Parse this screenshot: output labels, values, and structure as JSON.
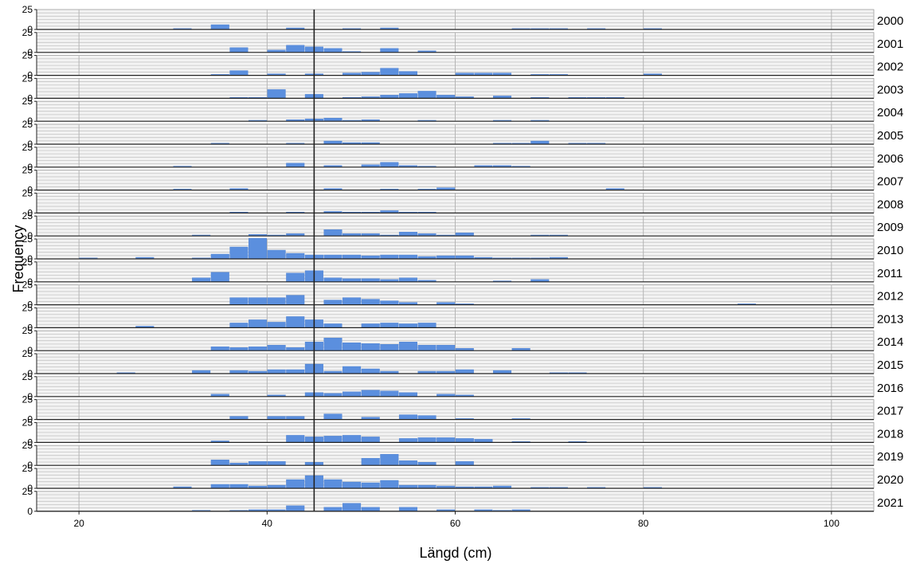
{
  "chart_data": {
    "type": "bar",
    "title": "",
    "xlabel": "Längd (cm)",
    "ylabel": "Frequency",
    "xlim": [
      15.5,
      104.5
    ],
    "ylim": [
      0,
      25
    ],
    "x_ticks": [
      20,
      40,
      60,
      80,
      100
    ],
    "y_ticks": [
      0,
      25
    ],
    "reference_line_x": 45,
    "bin_width": 2,
    "bar_color": "#5b8fde",
    "panels": [
      {
        "label": "2000",
        "bins": [
          [
            30,
            1
          ],
          [
            34,
            6
          ],
          [
            42,
            2
          ],
          [
            48,
            1
          ],
          [
            52,
            2
          ],
          [
            66,
            1
          ],
          [
            68,
            1
          ],
          [
            70,
            1
          ],
          [
            74,
            1
          ],
          [
            80,
            1
          ]
        ]
      },
      {
        "label": "2001",
        "bins": [
          [
            36,
            6
          ],
          [
            40,
            3
          ],
          [
            42,
            9
          ],
          [
            44,
            7
          ],
          [
            46,
            5
          ],
          [
            48,
            1
          ],
          [
            52,
            5
          ],
          [
            56,
            2
          ]
        ]
      },
      {
        "label": "2002",
        "bins": [
          [
            34,
            1
          ],
          [
            36,
            6
          ],
          [
            40,
            2
          ],
          [
            44,
            2
          ],
          [
            48,
            3
          ],
          [
            50,
            4
          ],
          [
            52,
            9
          ],
          [
            54,
            5
          ],
          [
            60,
            3
          ],
          [
            62,
            3
          ],
          [
            64,
            3
          ],
          [
            68,
            1
          ],
          [
            70,
            1
          ],
          [
            80,
            2
          ]
        ]
      },
      {
        "label": "2003",
        "bins": [
          [
            36,
            1
          ],
          [
            38,
            1
          ],
          [
            40,
            11
          ],
          [
            44,
            5
          ],
          [
            48,
            1
          ],
          [
            50,
            2
          ],
          [
            52,
            4
          ],
          [
            54,
            6
          ],
          [
            56,
            9
          ],
          [
            58,
            4
          ],
          [
            60,
            2
          ],
          [
            64,
            3
          ],
          [
            68,
            1
          ],
          [
            72,
            1
          ],
          [
            74,
            1
          ],
          [
            76,
            1
          ]
        ]
      },
      {
        "label": "2004",
        "bins": [
          [
            38,
            1
          ],
          [
            42,
            2
          ],
          [
            44,
            3
          ],
          [
            46,
            4
          ],
          [
            48,
            1
          ],
          [
            50,
            2
          ],
          [
            56,
            1
          ],
          [
            64,
            1
          ],
          [
            68,
            1
          ]
        ]
      },
      {
        "label": "2005",
        "bins": [
          [
            34,
            1
          ],
          [
            42,
            1
          ],
          [
            46,
            4
          ],
          [
            48,
            2
          ],
          [
            50,
            2
          ],
          [
            64,
            1
          ],
          [
            66,
            1
          ],
          [
            68,
            4
          ],
          [
            72,
            1
          ],
          [
            74,
            1
          ]
        ]
      },
      {
        "label": "2006",
        "bins": [
          [
            30,
            1
          ],
          [
            42,
            5
          ],
          [
            46,
            2
          ],
          [
            50,
            3
          ],
          [
            52,
            6
          ],
          [
            54,
            2
          ],
          [
            56,
            1
          ],
          [
            62,
            2
          ],
          [
            64,
            2
          ],
          [
            66,
            1
          ]
        ]
      },
      {
        "label": "2007",
        "bins": [
          [
            30,
            1
          ],
          [
            36,
            2
          ],
          [
            46,
            2
          ],
          [
            52,
            1
          ],
          [
            56,
            1
          ],
          [
            58,
            3
          ],
          [
            76,
            2
          ]
        ]
      },
      {
        "label": "2008",
        "bins": [
          [
            36,
            1
          ],
          [
            42,
            1
          ],
          [
            46,
            2
          ],
          [
            48,
            1
          ],
          [
            50,
            1
          ],
          [
            52,
            3
          ],
          [
            54,
            1
          ],
          [
            56,
            1
          ]
        ]
      },
      {
        "label": "2009",
        "bins": [
          [
            32,
            1
          ],
          [
            38,
            2
          ],
          [
            40,
            1
          ],
          [
            42,
            3
          ],
          [
            46,
            8
          ],
          [
            48,
            3
          ],
          [
            50,
            3
          ],
          [
            52,
            1
          ],
          [
            54,
            5
          ],
          [
            56,
            3
          ],
          [
            58,
            1
          ],
          [
            60,
            4
          ],
          [
            68,
            1
          ],
          [
            70,
            1
          ]
        ]
      },
      {
        "label": "2010",
        "bins": [
          [
            20,
            1
          ],
          [
            26,
            2
          ],
          [
            32,
            1
          ],
          [
            34,
            6
          ],
          [
            36,
            15
          ],
          [
            38,
            26
          ],
          [
            40,
            11
          ],
          [
            42,
            7
          ],
          [
            44,
            5
          ],
          [
            46,
            5
          ],
          [
            48,
            5
          ],
          [
            50,
            4
          ],
          [
            52,
            5
          ],
          [
            54,
            5
          ],
          [
            56,
            3
          ],
          [
            58,
            4
          ],
          [
            60,
            4
          ],
          [
            62,
            2
          ],
          [
            64,
            1
          ],
          [
            66,
            1
          ],
          [
            68,
            1
          ],
          [
            70,
            2
          ]
        ]
      },
      {
        "label": "2011",
        "bins": [
          [
            32,
            5
          ],
          [
            34,
            12
          ],
          [
            42,
            11
          ],
          [
            44,
            14
          ],
          [
            46,
            5
          ],
          [
            48,
            4
          ],
          [
            50,
            4
          ],
          [
            52,
            3
          ],
          [
            54,
            5
          ],
          [
            56,
            2
          ],
          [
            64,
            1
          ],
          [
            68,
            3
          ]
        ]
      },
      {
        "label": "2012",
        "bins": [
          [
            36,
            9
          ],
          [
            38,
            9
          ],
          [
            40,
            9
          ],
          [
            42,
            12
          ],
          [
            46,
            6
          ],
          [
            48,
            9
          ],
          [
            50,
            7
          ],
          [
            52,
            5
          ],
          [
            54,
            3
          ],
          [
            58,
            3
          ],
          [
            60,
            1
          ],
          [
            90,
            1
          ]
        ]
      },
      {
        "label": "2013",
        "bins": [
          [
            26,
            2
          ],
          [
            36,
            6
          ],
          [
            38,
            10
          ],
          [
            40,
            7
          ],
          [
            42,
            14
          ],
          [
            44,
            10
          ],
          [
            46,
            5
          ],
          [
            50,
            5
          ],
          [
            52,
            6
          ],
          [
            54,
            5
          ],
          [
            56,
            6
          ]
        ]
      },
      {
        "label": "2014",
        "bins": [
          [
            34,
            5
          ],
          [
            36,
            4
          ],
          [
            38,
            5
          ],
          [
            40,
            7
          ],
          [
            42,
            4
          ],
          [
            44,
            11
          ],
          [
            46,
            16
          ],
          [
            48,
            10
          ],
          [
            50,
            9
          ],
          [
            52,
            8
          ],
          [
            54,
            11
          ],
          [
            56,
            7
          ],
          [
            58,
            7
          ],
          [
            60,
            3
          ],
          [
            66,
            3
          ]
        ]
      },
      {
        "label": "2015",
        "bins": [
          [
            24,
            1
          ],
          [
            32,
            4
          ],
          [
            36,
            4
          ],
          [
            38,
            3
          ],
          [
            40,
            5
          ],
          [
            42,
            5
          ],
          [
            44,
            12
          ],
          [
            46,
            3
          ],
          [
            48,
            9
          ],
          [
            50,
            6
          ],
          [
            52,
            3
          ],
          [
            56,
            3
          ],
          [
            58,
            3
          ],
          [
            60,
            5
          ],
          [
            64,
            4
          ],
          [
            70,
            1
          ],
          [
            72,
            1
          ]
        ]
      },
      {
        "label": "2016",
        "bins": [
          [
            34,
            3
          ],
          [
            40,
            2
          ],
          [
            44,
            5
          ],
          [
            46,
            4
          ],
          [
            48,
            6
          ],
          [
            50,
            8
          ],
          [
            52,
            7
          ],
          [
            54,
            5
          ],
          [
            58,
            3
          ],
          [
            60,
            2
          ]
        ]
      },
      {
        "label": "2017",
        "bins": [
          [
            36,
            4
          ],
          [
            40,
            4
          ],
          [
            42,
            4
          ],
          [
            46,
            7
          ],
          [
            50,
            3
          ],
          [
            54,
            6
          ],
          [
            56,
            5
          ],
          [
            60,
            1
          ],
          [
            66,
            1
          ]
        ]
      },
      {
        "label": "2018",
        "bins": [
          [
            34,
            2
          ],
          [
            42,
            9
          ],
          [
            44,
            7
          ],
          [
            46,
            8
          ],
          [
            48,
            9
          ],
          [
            50,
            7
          ],
          [
            54,
            5
          ],
          [
            56,
            6
          ],
          [
            58,
            6
          ],
          [
            60,
            5
          ],
          [
            62,
            4
          ],
          [
            66,
            1
          ],
          [
            72,
            1
          ]
        ]
      },
      {
        "label": "2019",
        "bins": [
          [
            34,
            7
          ],
          [
            36,
            3
          ],
          [
            38,
            5
          ],
          [
            40,
            5
          ],
          [
            44,
            4
          ],
          [
            50,
            9
          ],
          [
            52,
            14
          ],
          [
            54,
            6
          ],
          [
            56,
            4
          ],
          [
            60,
            5
          ]
        ]
      },
      {
        "label": "2020",
        "bins": [
          [
            30,
            2
          ],
          [
            34,
            5
          ],
          [
            36,
            5
          ],
          [
            38,
            3
          ],
          [
            40,
            4
          ],
          [
            42,
            11
          ],
          [
            44,
            16
          ],
          [
            46,
            11
          ],
          [
            48,
            8
          ],
          [
            50,
            7
          ],
          [
            52,
            10
          ],
          [
            54,
            4
          ],
          [
            56,
            4
          ],
          [
            58,
            3
          ],
          [
            60,
            2
          ],
          [
            62,
            2
          ],
          [
            64,
            3
          ],
          [
            68,
            1
          ],
          [
            70,
            1
          ],
          [
            74,
            1
          ],
          [
            80,
            1
          ]
        ]
      },
      {
        "label": "2021",
        "bins": [
          [
            32,
            1
          ],
          [
            36,
            1
          ],
          [
            38,
            2
          ],
          [
            40,
            2
          ],
          [
            42,
            7
          ],
          [
            46,
            5
          ],
          [
            48,
            10
          ],
          [
            50,
            5
          ],
          [
            54,
            5
          ],
          [
            58,
            2
          ],
          [
            62,
            2
          ],
          [
            64,
            1
          ],
          [
            66,
            2
          ]
        ]
      }
    ]
  }
}
